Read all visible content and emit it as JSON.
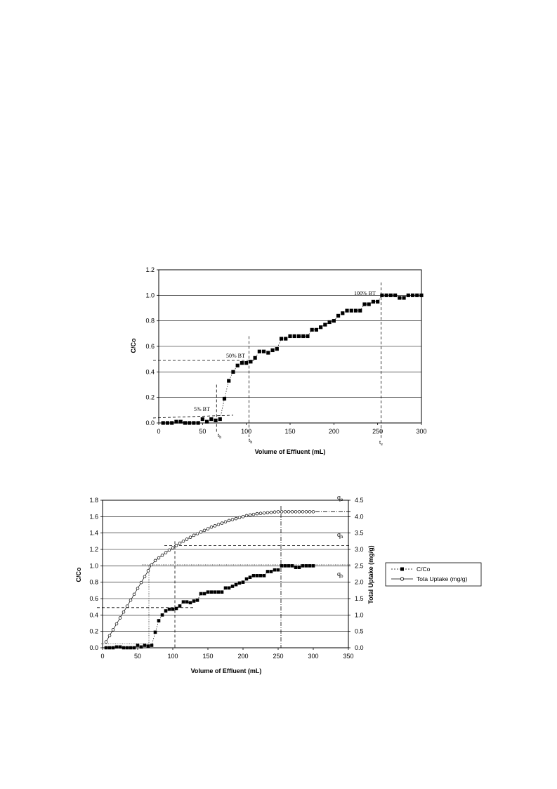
{
  "chart_data": [
    {
      "type": "scatter",
      "xlabel": "Volume of Effluent (mL)",
      "ylabel": "C/Co",
      "xlim": [
        0,
        300
      ],
      "ylim": [
        0,
        1.2
      ],
      "xticks": [
        "0",
        "50",
        "100",
        "150",
        "200",
        "250",
        "300"
      ],
      "yticks": [
        "0.0",
        "0.2",
        "0.4",
        "0.6",
        "0.8",
        "1.0",
        "1.2"
      ],
      "grid": "horizontal",
      "series": [
        {
          "x": [
            5,
            10,
            15,
            20,
            25,
            30,
            35,
            40,
            45,
            50,
            55,
            60,
            65,
            70,
            75,
            80,
            85,
            90,
            95,
            100,
            105,
            110,
            115,
            120,
            125,
            130,
            135,
            140,
            145,
            150,
            155,
            160,
            165,
            170,
            175,
            180,
            185,
            190,
            195,
            200,
            205,
            210,
            215,
            220,
            225,
            230,
            235,
            240,
            245,
            250,
            255,
            260,
            265,
            270,
            275,
            280,
            285,
            290,
            295,
            300
          ],
          "y": [
            0.0,
            0.0,
            0.0,
            0.01,
            0.01,
            0.0,
            0.0,
            0.0,
            0.0,
            0.03,
            0.01,
            0.03,
            0.02,
            0.03,
            0.19,
            0.33,
            0.4,
            0.45,
            0.47,
            0.47,
            0.48,
            0.51,
            0.56,
            0.56,
            0.55,
            0.57,
            0.58,
            0.66,
            0.66,
            0.68,
            0.68,
            0.68,
            0.68,
            0.68,
            0.73,
            0.73,
            0.75,
            0.77,
            0.79,
            0.8,
            0.84,
            0.86,
            0.88,
            0.88,
            0.88,
            0.88,
            0.93,
            0.93,
            0.95,
            0.95,
            1.0,
            1.0,
            1.0,
            1.0,
            0.98,
            0.98,
            1.0,
            1.0,
            1.0,
            1.0
          ]
        }
      ],
      "annotations": {
        "bt5": "5% BT",
        "bt50": "50% BT",
        "bt100": "100% BT",
        "tb": "t",
        "tb_sub": "b",
        "th": "t",
        "th_sub": "h",
        "te": "t",
        "te_sub": "e"
      },
      "reference_lines": {
        "vertical_x": [
          66,
          103,
          254
        ],
        "horizontal_y": [
          0.05,
          0.49
        ]
      }
    },
    {
      "type": "line",
      "xlabel": "Volume of Effluent (mL)",
      "ylabel": "C/Co",
      "y2label": "Total Uptake (mg/g)",
      "xlim": [
        0,
        350
      ],
      "ylim": [
        0,
        1.8
      ],
      "y2lim": [
        0,
        4.5
      ],
      "xticks": [
        "0",
        "50",
        "100",
        "150",
        "200",
        "250",
        "300",
        "350"
      ],
      "yticks": [
        "0.0",
        "0.2",
        "0.4",
        "0.6",
        "0.8",
        "1.0",
        "1.2",
        "1.4",
        "1.6",
        "1.8"
      ],
      "y2ticks": [
        "0.0",
        "0.5",
        "1.0",
        "1.5",
        "2.0",
        "2.5",
        "3.0",
        "3.5",
        "4.0",
        "4.5"
      ],
      "grid": "horizontal",
      "legend_position": "right",
      "series": [
        {
          "name": "C/Co",
          "axis": "left",
          "x": [
            5,
            10,
            15,
            20,
            25,
            30,
            35,
            40,
            45,
            50,
            55,
            60,
            65,
            70,
            75,
            80,
            85,
            90,
            95,
            100,
            105,
            110,
            115,
            120,
            125,
            130,
            135,
            140,
            145,
            150,
            155,
            160,
            165,
            170,
            175,
            180,
            185,
            190,
            195,
            200,
            205,
            210,
            215,
            220,
            225,
            230,
            235,
            240,
            245,
            250,
            255,
            260,
            265,
            270,
            275,
            280,
            285,
            290,
            295,
            300
          ],
          "y": [
            0.0,
            0.0,
            0.0,
            0.01,
            0.01,
            0.0,
            0.0,
            0.0,
            0.0,
            0.03,
            0.01,
            0.03,
            0.02,
            0.03,
            0.19,
            0.33,
            0.4,
            0.45,
            0.47,
            0.47,
            0.48,
            0.51,
            0.56,
            0.56,
            0.55,
            0.57,
            0.58,
            0.66,
            0.66,
            0.68,
            0.68,
            0.68,
            0.68,
            0.68,
            0.73,
            0.73,
            0.75,
            0.77,
            0.79,
            0.8,
            0.84,
            0.86,
            0.88,
            0.88,
            0.88,
            0.88,
            0.93,
            0.93,
            0.95,
            0.95,
            1.0,
            1.0,
            1.0,
            1.0,
            0.98,
            0.98,
            1.0,
            1.0,
            1.0,
            1.0
          ]
        },
        {
          "name": "Tota Uptake (mg/g)",
          "axis": "right",
          "x": [
            5,
            10,
            15,
            20,
            25,
            30,
            35,
            40,
            45,
            50,
            55,
            60,
            65,
            70,
            75,
            80,
            85,
            90,
            95,
            100,
            105,
            110,
            115,
            120,
            125,
            130,
            135,
            140,
            145,
            150,
            155,
            160,
            165,
            170,
            175,
            180,
            185,
            190,
            195,
            200,
            205,
            210,
            215,
            220,
            225,
            230,
            235,
            240,
            245,
            250,
            255,
            260,
            265,
            270,
            275,
            280,
            285,
            290,
            295,
            300
          ],
          "y": [
            0.18,
            0.37,
            0.55,
            0.73,
            0.91,
            1.09,
            1.27,
            1.45,
            1.63,
            1.81,
            1.99,
            2.17,
            2.35,
            2.53,
            2.66,
            2.74,
            2.82,
            2.9,
            2.98,
            3.05,
            3.12,
            3.19,
            3.25,
            3.31,
            3.37,
            3.43,
            3.48,
            3.53,
            3.58,
            3.63,
            3.68,
            3.72,
            3.76,
            3.8,
            3.84,
            3.88,
            3.91,
            3.94,
            3.97,
            4.0,
            4.03,
            4.05,
            4.07,
            4.09,
            4.1,
            4.11,
            4.12,
            4.13,
            4.14,
            4.15,
            4.15,
            4.15,
            4.15,
            4.15,
            4.15,
            4.15,
            4.15,
            4.15,
            4.15,
            4.15
          ]
        }
      ],
      "annotations": {
        "qe": "q",
        "qe_sub": "e",
        "qh": "q",
        "qh_sub": "h",
        "qb": "q",
        "qb_sub": "b"
      },
      "reference_lines": {
        "vertical_x": [
          66,
          103,
          254
        ],
        "horizontal_y": [
          0.05,
          0.49
        ],
        "horizontal_y2": [
          2.53,
          3.12,
          4.15
        ]
      }
    }
  ]
}
